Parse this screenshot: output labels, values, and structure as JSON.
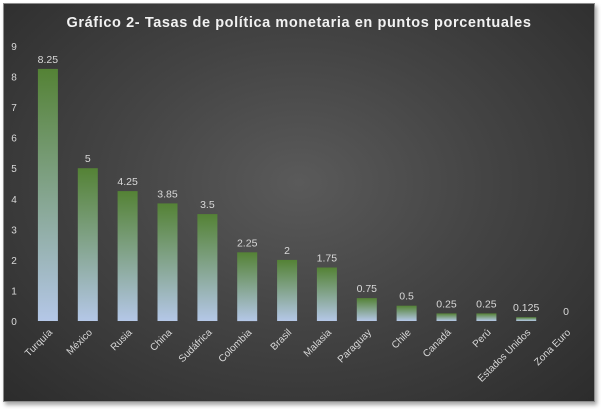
{
  "chart_data": {
    "type": "bar",
    "title": "Gráfico 2- Tasas de política monetaria en puntos porcentuales",
    "xlabel": "",
    "ylabel": "",
    "ylim": [
      0,
      9
    ],
    "yticks": [
      0,
      1,
      2,
      3,
      4,
      5,
      6,
      7,
      8,
      9
    ],
    "grid": false,
    "legend": "none",
    "categories": [
      "Turquía",
      "México",
      "Rusia",
      "China",
      "Sudáfrica",
      "Colombia",
      "Brasil",
      "Malasia",
      "Paraguay",
      "Chile",
      "Canadá",
      "Perú",
      "Estados Unidos",
      "Zona Euro"
    ],
    "values": [
      8.25,
      5,
      4.25,
      3.85,
      3.5,
      2.25,
      2,
      1.75,
      0.75,
      0.5,
      0.25,
      0.25,
      0.125,
      0
    ],
    "value_labels": [
      "8.25",
      "5",
      "4.25",
      "3.85",
      "3.5",
      "2.25",
      "2",
      "1.75",
      "0.75",
      "0.5",
      "0.25",
      "0.25",
      "0.125",
      "0"
    ],
    "colors": {
      "bar_top": "#548235",
      "bar_bottom": "#b4c7e7",
      "background_center": "#5a5a5a",
      "background_edge": "#2c2c2c",
      "text": "#d9d9d9"
    }
  }
}
